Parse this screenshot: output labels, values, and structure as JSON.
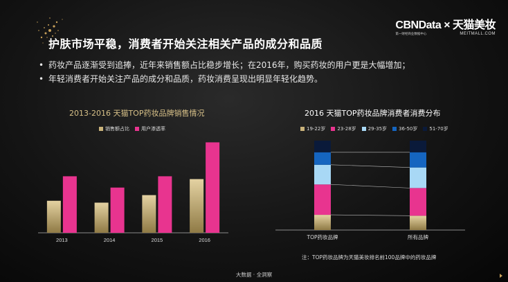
{
  "header": {
    "title": "护肤市场平稳，消费者开始关注相关产品的成分和品质",
    "bullets": [
      "药妆产品逐渐受到追捧，近年来销售额占比稳步增长；在2016年，购买药妆的用户更是大幅增加；",
      "年轻消费者开始关注产品的成分和品质，药妆消费呈现出明显年轻化趋势。"
    ]
  },
  "brand": {
    "main": "CBNData × 天猫美妆",
    "sub_left": "第一财经商业数据中心",
    "sub_right": "MEITMALL.COM"
  },
  "colors": {
    "gold": "#c9b27a",
    "pink": "#e8348f",
    "blue_dark": "#1565c0",
    "blue_light": "#a8d8f5"
  },
  "chart_data": [
    {
      "type": "bar",
      "title": "2013-2016 天猫TOP药妆品牌销售情况",
      "categories": [
        "2013",
        "2014",
        "2015",
        "2016"
      ],
      "series": [
        {
          "name": "销售额占比",
          "values": [
            34,
            32,
            40,
            57
          ],
          "color": "#c9b27a"
        },
        {
          "name": "用户渗透率",
          "values": [
            60,
            48,
            60,
            96
          ],
          "color": "#e8348f"
        }
      ],
      "ylim": [
        0,
        100
      ],
      "grid": false,
      "legend": "top"
    },
    {
      "type": "bar",
      "stacked": true,
      "title": "2016  天猫TOP药妆品牌消费者消费分布",
      "categories": [
        "TOP药妆品牌",
        "所有品牌"
      ],
      "series": [
        {
          "name": "19-22岁",
          "values": [
            17,
            16
          ],
          "color": "#c9b27a"
        },
        {
          "name": "23-28岁",
          "values": [
            34,
            31
          ],
          "color": "#e8348f"
        },
        {
          "name": "29-35岁",
          "values": [
            22,
            23
          ],
          "color": "#a8d8f5"
        },
        {
          "name": "36-50岁",
          "values": [
            14,
            17
          ],
          "color": "#1565c0"
        },
        {
          "name": "51-70岁",
          "values": [
            13,
            13
          ],
          "color": "#0a1a3a"
        }
      ],
      "ylim": [
        0,
        100
      ],
      "legend": "top"
    }
  ],
  "note": "注：TOP药妆品牌为天猫美妆排名前100品牌中的药妆品牌",
  "footer": "大数据 · 全洞察"
}
